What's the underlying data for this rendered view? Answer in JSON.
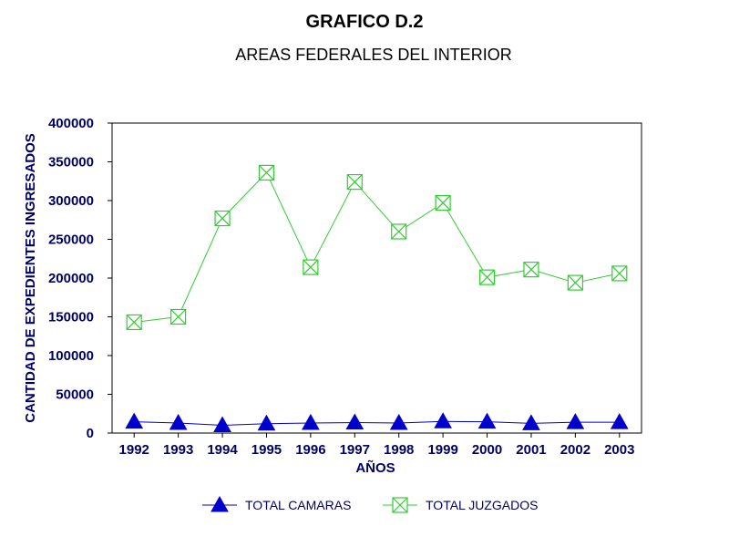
{
  "chart_data": {
    "type": "line",
    "title": "GRAFICO D.2",
    "subtitle": "AREAS FEDERALES DEL INTERIOR",
    "xlabel": "AÑOS",
    "ylabel": "CANTIDAD DE EXPEDIENTES INGRESADOS",
    "categories": [
      "1992",
      "1993",
      "1994",
      "1995",
      "1996",
      "1997",
      "1998",
      "1999",
      "2000",
      "2001",
      "2002",
      "2003"
    ],
    "ylim": [
      0,
      400000
    ],
    "yticks": [
      0,
      50000,
      100000,
      150000,
      200000,
      250000,
      300000,
      350000,
      400000
    ],
    "ytick_labels": [
      "0",
      "50000",
      "100000",
      "150000",
      "200000",
      "250000",
      "300000",
      "350000",
      "400000"
    ],
    "grid": false,
    "legend_position": "bottom",
    "series": [
      {
        "name": "TOTAL CAMARAS",
        "marker": "triangle",
        "color": "#0000cc",
        "values": [
          14500,
          13000,
          10000,
          12000,
          13000,
          13500,
          13000,
          15000,
          14500,
          12500,
          14000,
          14000
        ]
      },
      {
        "name": "TOTAL JUZGADOS",
        "marker": "box-x",
        "color": "#33cc33",
        "values": [
          143000,
          150000,
          277000,
          336000,
          214000,
          324000,
          260000,
          297000,
          201000,
          211000,
          194000,
          206000
        ]
      }
    ]
  }
}
